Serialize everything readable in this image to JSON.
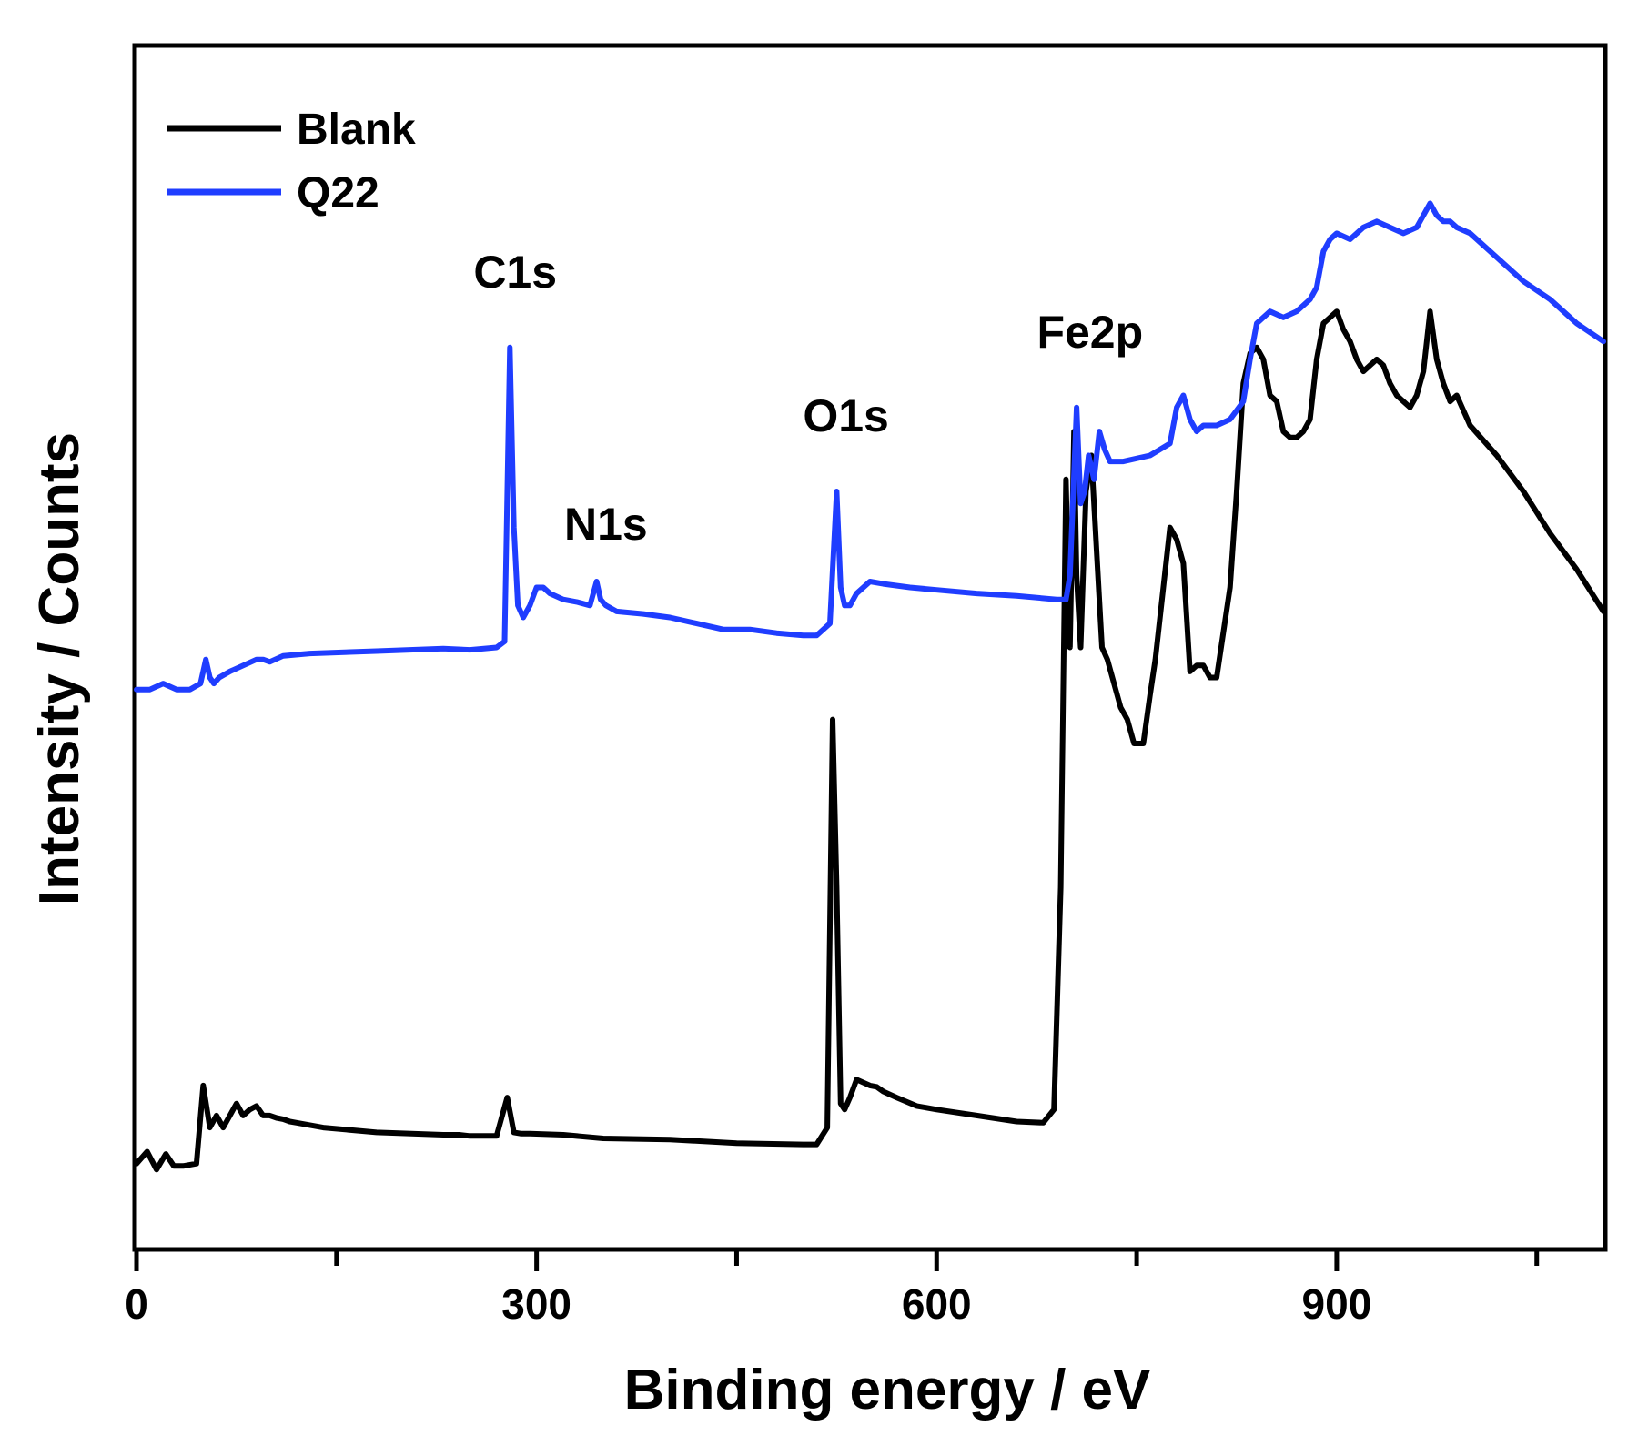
{
  "chart_data": {
    "type": "line",
    "title": "",
    "xlabel": "Binding energy / eV",
    "ylabel": "Intensity / Counts",
    "xlim": [
      0,
      1100
    ],
    "ylim": [
      0,
      100
    ],
    "x_ticks": [
      0,
      300,
      600,
      900
    ],
    "x_minor_ticks": [
      150,
      450,
      750,
      1050
    ],
    "y_ticks": [],
    "grid": false,
    "legend_position": "top-left",
    "series": [
      {
        "name": "Blank",
        "color": "#000000",
        "x": [
          0,
          8,
          15,
          22,
          28,
          35,
          45,
          50,
          55,
          60,
          65,
          75,
          80,
          85,
          90,
          95,
          100,
          105,
          110,
          115,
          120,
          140,
          180,
          230,
          242,
          250,
          270,
          278,
          283,
          288,
          295,
          320,
          350,
          400,
          450,
          500,
          510,
          518,
          522,
          525,
          528,
          531,
          535,
          540,
          550,
          555,
          560,
          570,
          585,
          600,
          630,
          660,
          680,
          688,
          693,
          697,
          700,
          703,
          705,
          708,
          712,
          716,
          720,
          724,
          728,
          733,
          738,
          743,
          748,
          755,
          760,
          764,
          770,
          775,
          780,
          785,
          790,
          795,
          800,
          805,
          810,
          820,
          825,
          830,
          835,
          840,
          845,
          850,
          855,
          860,
          865,
          870,
          875,
          880,
          885,
          890,
          895,
          900,
          905,
          910,
          915,
          920,
          925,
          930,
          935,
          940,
          945,
          950,
          955,
          960,
          965,
          970,
          975,
          980,
          985,
          990,
          1000,
          1020,
          1040,
          1060,
          1080,
          1100
        ],
        "values": [
          7.0,
          8.0,
          6.5,
          7.8,
          6.8,
          6.8,
          7.0,
          13.5,
          10.0,
          11.0,
          10.0,
          12.0,
          11.0,
          11.5,
          11.8,
          11.0,
          11.0,
          10.8,
          10.7,
          10.5,
          10.4,
          10.0,
          9.6,
          9.4,
          9.4,
          9.3,
          9.3,
          12.5,
          9.6,
          9.5,
          9.5,
          9.4,
          9.1,
          9.0,
          8.7,
          8.6,
          8.6,
          10.0,
          44.0,
          30.0,
          12.0,
          11.5,
          12.5,
          14.0,
          13.5,
          13.4,
          13.0,
          12.5,
          11.8,
          11.5,
          11.0,
          10.5,
          10.4,
          11.5,
          30.0,
          64.0,
          50.0,
          68.0,
          56.0,
          50.0,
          63.0,
          66.0,
          58.0,
          50.0,
          49.0,
          47.0,
          45.0,
          44.0,
          42.0,
          42.0,
          46.0,
          49.0,
          55.0,
          60.0,
          59.0,
          57.0,
          48.0,
          48.5,
          48.5,
          47.5,
          47.5,
          55.0,
          63.0,
          72.0,
          74.5,
          75.0,
          74.0,
          71.0,
          70.5,
          68.0,
          67.5,
          67.5,
          68.0,
          69.0,
          74.0,
          77.0,
          77.5,
          78.0,
          76.5,
          75.5,
          74.0,
          73.0,
          73.5,
          74.0,
          73.5,
          72.0,
          71.0,
          70.5,
          70.0,
          71.0,
          73.0,
          78.0,
          74.0,
          72.0,
          70.5,
          71.0,
          68.5,
          66.0,
          63.0,
          59.5,
          56.5,
          53.0
        ]
      },
      {
        "name": "Q22",
        "color": "#1f3dff",
        "x": [
          0,
          10,
          20,
          30,
          40,
          48,
          52,
          55,
          58,
          62,
          70,
          80,
          90,
          95,
          100,
          110,
          130,
          180,
          230,
          250,
          270,
          276,
          280,
          283,
          286,
          290,
          295,
          300,
          305,
          310,
          320,
          330,
          340,
          345,
          348,
          352,
          360,
          380,
          400,
          420,
          440,
          450,
          460,
          480,
          500,
          510,
          520,
          525,
          528,
          531,
          535,
          540,
          550,
          560,
          580,
          600,
          630,
          660,
          690,
          697,
          700,
          705,
          708,
          711,
          714,
          718,
          722,
          726,
          730,
          740,
          760,
          775,
          780,
          785,
          790,
          795,
          800,
          810,
          820,
          830,
          835,
          840,
          850,
          860,
          870,
          880,
          885,
          890,
          895,
          900,
          910,
          920,
          930,
          940,
          950,
          960,
          970,
          975,
          980,
          985,
          990,
          1000,
          1020,
          1040,
          1060,
          1080,
          1100
        ],
        "values": [
          46.5,
          46.5,
          47.0,
          46.5,
          46.5,
          47.0,
          49.0,
          47.5,
          47.0,
          47.5,
          48.0,
          48.5,
          49.0,
          49.0,
          48.8,
          49.3,
          49.5,
          49.7,
          49.9,
          49.8,
          50.0,
          50.5,
          75.0,
          60.0,
          53.5,
          52.5,
          53.5,
          55.0,
          55.0,
          54.5,
          54.0,
          53.8,
          53.5,
          55.5,
          54.0,
          53.5,
          53.0,
          52.8,
          52.5,
          52.0,
          51.5,
          51.5,
          51.5,
          51.2,
          51.0,
          51.0,
          52.0,
          63.0,
          55.0,
          53.5,
          53.5,
          54.5,
          55.5,
          55.3,
          55.0,
          54.8,
          54.5,
          54.3,
          54.0,
          54.0,
          56.0,
          70.0,
          62.0,
          63.0,
          66.0,
          64.0,
          68.0,
          66.5,
          65.5,
          65.5,
          66.0,
          67.0,
          70.0,
          71.0,
          69.0,
          68.0,
          68.5,
          68.5,
          69.0,
          70.5,
          74.0,
          77.0,
          78.0,
          77.5,
          78.0,
          79.0,
          80.0,
          83.0,
          84.0,
          84.5,
          84.0,
          85.0,
          85.5,
          85.0,
          84.5,
          85.0,
          87.0,
          86.0,
          85.5,
          85.5,
          85.0,
          84.5,
          82.5,
          80.5,
          79.0,
          77.0,
          75.5
        ]
      }
    ],
    "annotations": [
      {
        "text": "C1s",
        "x": 284,
        "y": 80.0
      },
      {
        "text": "N1s",
        "x": 352,
        "y": 59.0
      },
      {
        "text": "O1s",
        "x": 532,
        "y": 68.0
      },
      {
        "text": "Fe2p",
        "x": 715,
        "y": 75.0
      }
    ]
  }
}
